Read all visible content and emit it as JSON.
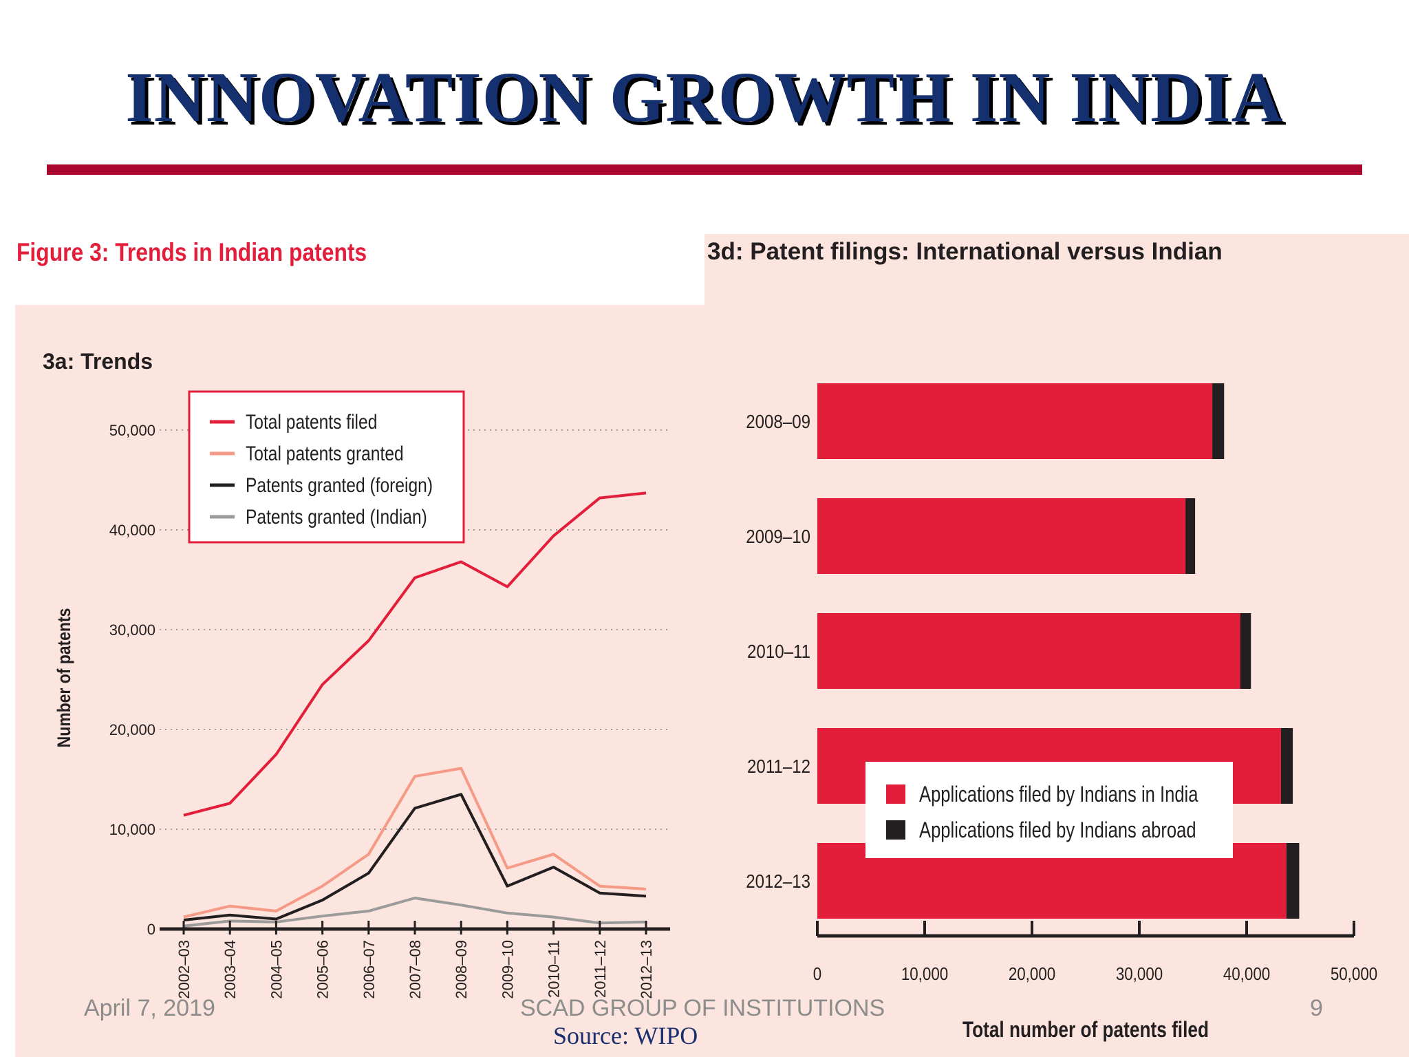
{
  "slide": {
    "title": "INNOVATION GROWTH IN INDIA",
    "figure_title": "Figure 3: Trends in Indian patents",
    "footer_date": "April 7, 2019",
    "footer_org": "SCAD GROUP OF INSTITUTIONS",
    "page_number": "9",
    "source": "Source: WIPO"
  },
  "colors": {
    "title_navy": "#15306e",
    "rule_red": "#a8062c",
    "panel_bg": "#fce5de",
    "line_red": "#e21e3b",
    "line_salmon": "#f59a86",
    "line_black": "#231f20",
    "line_gray": "#9b9b9b"
  },
  "chart_data": [
    {
      "type": "line",
      "title": "3a: Trends",
      "xlabel": "",
      "ylabel": "Number of patents",
      "categories": [
        "2002–03",
        "2003–04",
        "2004–05",
        "2005–06",
        "2006–07",
        "2007–08",
        "2008–09",
        "2009–10",
        "2010–11",
        "2011–12",
        "2012–13"
      ],
      "ylim": [
        0,
        50000
      ],
      "yticks": [
        0,
        10000,
        20000,
        30000,
        40000,
        50000
      ],
      "ytick_labels": [
        "0",
        "10,000",
        "20,000",
        "30,000",
        "40,000",
        "50,000"
      ],
      "grid": "dotted horizontal",
      "legend_position": "top-left",
      "series": [
        {
          "name": "Total patents filed",
          "color": "#e21e3b",
          "values": [
            11400,
            12600,
            17500,
            24500,
            28900,
            35200,
            36800,
            34300,
            39400,
            43200,
            43700
          ]
        },
        {
          "name": "Total patents granted",
          "color": "#f59a86",
          "values": [
            1200,
            2300,
            1800,
            4300,
            7500,
            15300,
            16100,
            6100,
            7500,
            4300,
            4000
          ]
        },
        {
          "name": "Patents granted (foreign)",
          "color": "#231f20",
          "values": [
            900,
            1400,
            1000,
            2900,
            5600,
            12100,
            13500,
            4300,
            6200,
            3600,
            3300
          ]
        },
        {
          "name": "Patents granted (Indian)",
          "color": "#9b9b9b",
          "values": [
            300,
            800,
            700,
            1300,
            1800,
            3100,
            2400,
            1600,
            1200,
            600,
            700
          ]
        }
      ]
    },
    {
      "type": "bar",
      "orientation": "horizontal",
      "stacked": true,
      "title": "3d: Patent filings: International versus Indian",
      "xlabel": "Total number of patents filed",
      "ylabel": "",
      "categories": [
        "2008–09",
        "2009–10",
        "2010–11",
        "2011–12",
        "2012–13"
      ],
      "xlim": [
        0,
        50000
      ],
      "xticks": [
        0,
        10000,
        20000,
        30000,
        40000,
        50000
      ],
      "xtick_labels": [
        "0",
        "10,000",
        "20,000",
        "30,000",
        "40,000",
        "50,000"
      ],
      "legend_position": "bottom-center",
      "series": [
        {
          "name": "Applications filed by Indians in India",
          "color": "#e21e3b",
          "values": [
            36800,
            34300,
            39400,
            43200,
            43700
          ]
        },
        {
          "name": "Applications filed by Indians abroad",
          "color": "#231f20",
          "values": [
            1100,
            900,
            1000,
            1100,
            1200
          ]
        }
      ]
    }
  ]
}
